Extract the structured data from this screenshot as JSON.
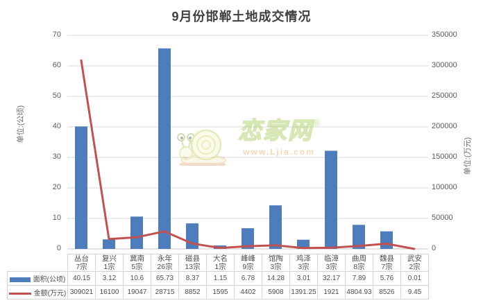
{
  "chart_data": {
    "type": "bar",
    "title": "9月份邯郸土地成交情况",
    "categories": [
      {
        "district": "丛台",
        "lots": "7宗"
      },
      {
        "district": "复兴",
        "lots": "1宗"
      },
      {
        "district": "冀南",
        "lots": "5宗"
      },
      {
        "district": "永年",
        "lots": "26宗"
      },
      {
        "district": "磁县",
        "lots": "13宗"
      },
      {
        "district": "大名",
        "lots": "1宗"
      },
      {
        "district": "峰峰",
        "lots": "9宗"
      },
      {
        "district": "馆陶",
        "lots": "3宗"
      },
      {
        "district": "鸡泽",
        "lots": "3宗"
      },
      {
        "district": "临漳",
        "lots": "3宗"
      },
      {
        "district": "曲周",
        "lots": "8宗"
      },
      {
        "district": "魏县",
        "lots": "7宗"
      },
      {
        "district": "武安",
        "lots": "2宗"
      }
    ],
    "series": [
      {
        "name": "面积(公顷)",
        "type": "bar",
        "axis": "left",
        "color": "#4d7dba",
        "values": [
          40.15,
          3.12,
          10.6,
          65.73,
          8.37,
          1.15,
          6.78,
          14.28,
          3.01,
          32.17,
          7.89,
          5.76,
          0.01
        ]
      },
      {
        "name": "金额(万元)",
        "type": "line",
        "axis": "right",
        "color": "#c2504e",
        "values": [
          309021,
          16100,
          19047,
          28715,
          8852,
          1595,
          4402,
          5908,
          1391.25,
          1921,
          4804.93,
          8526,
          9.45
        ]
      }
    ],
    "left_axis": {
      "title": "单位:(公顷)",
      "min": 0,
      "max": 70,
      "ticks": [
        0,
        10,
        20,
        30,
        40,
        50,
        60,
        70
      ]
    },
    "right_axis": {
      "title": "单位:(万元)",
      "min": 0,
      "max": 350000,
      "ticks": [
        0,
        50000,
        100000,
        150000,
        200000,
        250000,
        300000,
        350000
      ]
    },
    "grid": "horizontal",
    "legend_position": "bottom-table",
    "gridline_color": "#d9d9d9"
  },
  "watermark": {
    "brand": "恋家网",
    "reg": "®",
    "url": "www.Ljia.com"
  }
}
